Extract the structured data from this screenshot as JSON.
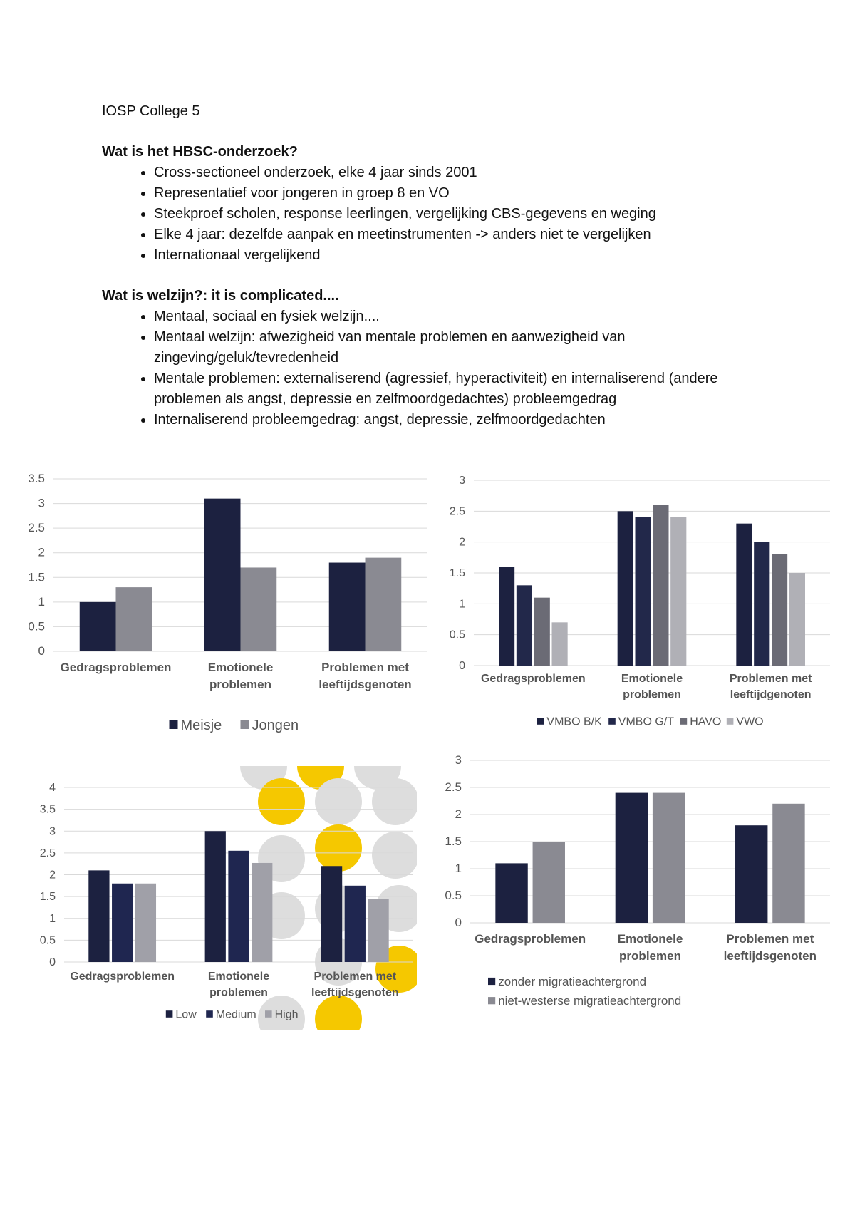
{
  "title": "IOSP College 5",
  "sections": [
    {
      "heading": "Wat is het HBSC-onderzoek?",
      "bullets": [
        "Cross-sectioneel onderzoek, elke 4 jaar sinds 2001",
        "Representatief voor jongeren in groep 8 en VO",
        "Steekproef scholen, response leerlingen, vergelijking CBS-gegevens en weging",
        "Elke 4 jaar: dezelfde aanpak en meetinstrumenten -> anders niet te vergelijken",
        "Internationaal vergelijkend"
      ]
    },
    {
      "heading": "Wat is welzijn?: it is complicated....",
      "bullets": [
        "Mentaal, sociaal en fysiek welzijn....",
        "Mentaal welzijn: afwezigheid van mentale problemen en aanwezigheid van zingeving/geluk/tevredenheid",
        "Mentale problemen: externaliserend (agressief, hyperactiviteit) en internaliserend (andere problemen als angst, depressie en zelfmoordgedachtes) probleemgedrag",
        "Internaliserend probleemgedrag: angst, depressie, zelfmoordgedachten"
      ]
    }
  ],
  "chart_data": [
    {
      "type": "bar",
      "categories": [
        "Gedragsproblemen",
        "Emotionele problemen",
        "Problemen met leeftijdsgenoten"
      ],
      "series": [
        {
          "name": "Meisje",
          "color": "#1c2140",
          "values": [
            1,
            3.1,
            1.8
          ]
        },
        {
          "name": "Jongen",
          "color": "#8a8a92",
          "values": [
            1.3,
            1.7,
            1.9
          ]
        }
      ],
      "ylim": [
        0,
        3.5
      ],
      "yticks": [
        0,
        0.5,
        1,
        1.5,
        2,
        2.5,
        3,
        3.5
      ],
      "grid": true,
      "legend": "bottom"
    },
    {
      "type": "bar",
      "categories": [
        "Gedragsproblemen",
        "Emotionele problemen",
        "Problemen met leeftijdgenoten"
      ],
      "series": [
        {
          "name": "VMBO B/K",
          "color": "#1c2140",
          "values": [
            1.6,
            2.5,
            2.3
          ]
        },
        {
          "name": "VMBO G/T",
          "color": "#22284a",
          "values": [
            1.3,
            2.4,
            2
          ]
        },
        {
          "name": "HAVO",
          "color": "#6b6b75",
          "values": [
            1.1,
            2.6,
            1.8
          ]
        },
        {
          "name": "VWO",
          "color": "#b0b0b6",
          "values": [
            0.7,
            2.4,
            1.5
          ]
        }
      ],
      "ylim": [
        0,
        3
      ],
      "yticks": [
        0,
        0.5,
        1,
        1.5,
        2,
        2.5,
        3
      ],
      "grid": true,
      "legend": "bottom"
    },
    {
      "type": "bar",
      "categories": [
        "Gedragsproblemen",
        "Emotionele problemen",
        "Problemen met leeftijdsgenoten"
      ],
      "series": [
        {
          "name": "Low",
          "color": "#1c2140",
          "values": [
            2.1,
            3,
            2.2
          ]
        },
        {
          "name": "Medium",
          "color": "#1f2650",
          "values": [
            1.8,
            2.55,
            1.75
          ]
        },
        {
          "name": "High",
          "color": "#a0a0a8",
          "values": [
            1.8,
            2.27,
            1.45
          ]
        }
      ],
      "ylim": [
        0,
        4
      ],
      "yticks": [
        0,
        0.5,
        1,
        1.5,
        2,
        2.5,
        3,
        3.5,
        4
      ],
      "grid": true,
      "legend": "bottom"
    },
    {
      "type": "bar",
      "categories": [
        "Gedragsproblemen",
        "Emotionele problemen",
        "Problemen met leeftijdsgenoten"
      ],
      "series": [
        {
          "name": "zonder migratieachtergrond",
          "color": "#1c2140",
          "values": [
            1.1,
            2.4,
            1.8
          ]
        },
        {
          "name": "niet-westerse migratieachtergrond",
          "color": "#8a8a92",
          "values": [
            1.5,
            2.4,
            2.2
          ]
        }
      ],
      "ylim": [
        0,
        3
      ],
      "yticks": [
        0,
        0.5,
        1,
        1.5,
        2,
        2.5,
        3
      ],
      "grid": true,
      "legend": "bottom-left"
    }
  ]
}
